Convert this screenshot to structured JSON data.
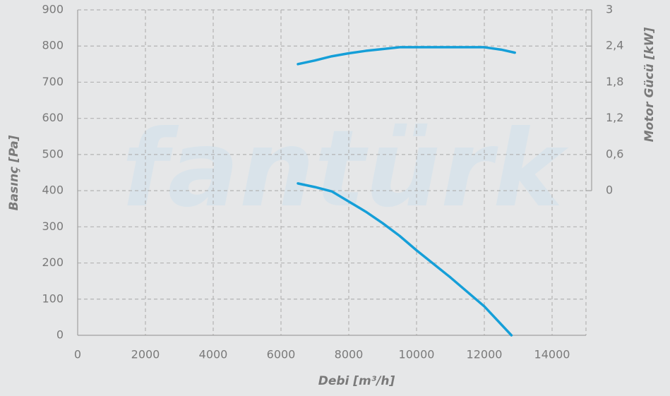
{
  "chart_data": {
    "type": "line",
    "watermark": "fantürk",
    "x_label": "Debi [m³/h]",
    "y_label": "Basınç [Pa]",
    "y2_label": "Motor Gücü [kW]",
    "xlim": [
      0,
      15000
    ],
    "xticks": [
      0,
      2000,
      4000,
      6000,
      8000,
      10000,
      12000,
      14000
    ],
    "ylim": [
      0,
      900
    ],
    "yticks": [
      0,
      100,
      200,
      300,
      400,
      500,
      600,
      700,
      800,
      900
    ],
    "y2lim": [
      -2.4,
      3
    ],
    "y2ticks": [
      0,
      {
        "value": 0.6,
        "label": "0,6"
      },
      {
        "value": 1.2,
        "label": "1,2"
      },
      {
        "value": 1.8,
        "label": "1,8"
      },
      {
        "value": 2.4,
        "label": "2,4"
      },
      3
    ],
    "grid": true,
    "series": [
      {
        "color": "#159fd8",
        "axis": "y2",
        "x": [
          6500,
          7000,
          7500,
          8000,
          8500,
          9000,
          9500,
          10000,
          11000,
          12000,
          12500,
          12900
        ],
        "values": [
          2.1,
          2.16,
          2.23,
          2.28,
          2.32,
          2.35,
          2.38,
          2.38,
          2.38,
          2.38,
          2.34,
          2.29
        ]
      },
      {
        "color": "#159fd8",
        "x": [
          6500,
          7000,
          7500,
          8000,
          8500,
          9000,
          9500,
          10000,
          11000,
          12000,
          12800
        ],
        "values": [
          420,
          410,
          398,
          370,
          342,
          310,
          275,
          235,
          160,
          80,
          0
        ]
      }
    ]
  }
}
